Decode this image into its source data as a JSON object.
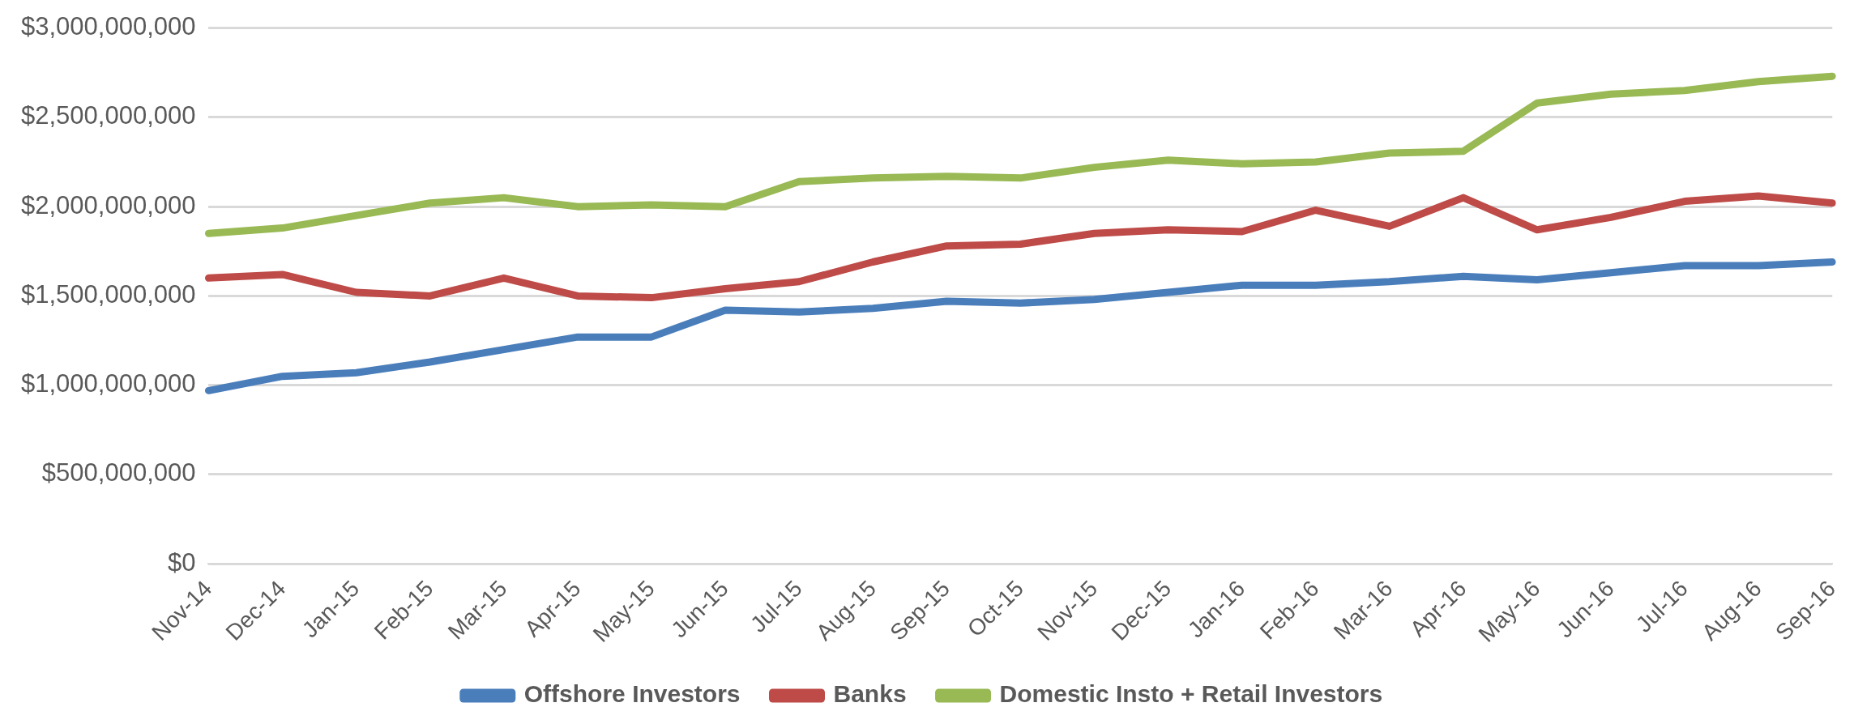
{
  "chart_data": {
    "type": "line",
    "categories": [
      "Nov-14",
      "Dec-14",
      "Jan-15",
      "Feb-15",
      "Mar-15",
      "Apr-15",
      "May-15",
      "Jun-15",
      "Jul-15",
      "Aug-15",
      "Sep-15",
      "Oct-15",
      "Nov-15",
      "Dec-15",
      "Jan-16",
      "Feb-16",
      "Mar-16",
      "Apr-16",
      "May-16",
      "Jun-16",
      "Jul-16",
      "Aug-16",
      "Sep-16"
    ],
    "series": [
      {
        "name": "Offshore Investors",
        "color": "#4a7ebb",
        "values": [
          970000000,
          1050000000,
          1070000000,
          1130000000,
          1200000000,
          1270000000,
          1270000000,
          1420000000,
          1410000000,
          1430000000,
          1470000000,
          1460000000,
          1480000000,
          1520000000,
          1560000000,
          1560000000,
          1580000000,
          1610000000,
          1590000000,
          1630000000,
          1670000000,
          1670000000,
          1690000000
        ]
      },
      {
        "name": "Banks",
        "color": "#be4b48",
        "values": [
          1600000000,
          1620000000,
          1520000000,
          1500000000,
          1600000000,
          1500000000,
          1490000000,
          1540000000,
          1580000000,
          1690000000,
          1780000000,
          1790000000,
          1850000000,
          1870000000,
          1860000000,
          1980000000,
          1890000000,
          2050000000,
          1870000000,
          1940000000,
          2030000000,
          2060000000,
          2020000000
        ]
      },
      {
        "name": "Domestic Insto + Retail Investors",
        "color": "#98b954",
        "values": [
          1850000000,
          1880000000,
          1950000000,
          2020000000,
          2050000000,
          2000000000,
          2010000000,
          2000000000,
          2140000000,
          2160000000,
          2170000000,
          2160000000,
          2220000000,
          2260000000,
          2240000000,
          2250000000,
          2300000000,
          2310000000,
          2580000000,
          2630000000,
          2650000000,
          2700000000,
          2730000000
        ]
      }
    ],
    "ylim": [
      0,
      3000000000
    ],
    "yticks": [
      {
        "value": 0,
        "label": "$0"
      },
      {
        "value": 500000000,
        "label": "$500,000,000"
      },
      {
        "value": 1000000000,
        "label": "$1,000,000,000"
      },
      {
        "value": 1500000000,
        "label": "$1,500,000,000"
      },
      {
        "value": 2000000000,
        "label": "$2,000,000,000"
      },
      {
        "value": 2500000000,
        "label": "$2,500,000,000"
      },
      {
        "value": 3000000000,
        "label": "$3,000,000,000"
      }
    ],
    "grid": "y",
    "legend": "bottom",
    "marker": "none",
    "line_style": "solid"
  }
}
